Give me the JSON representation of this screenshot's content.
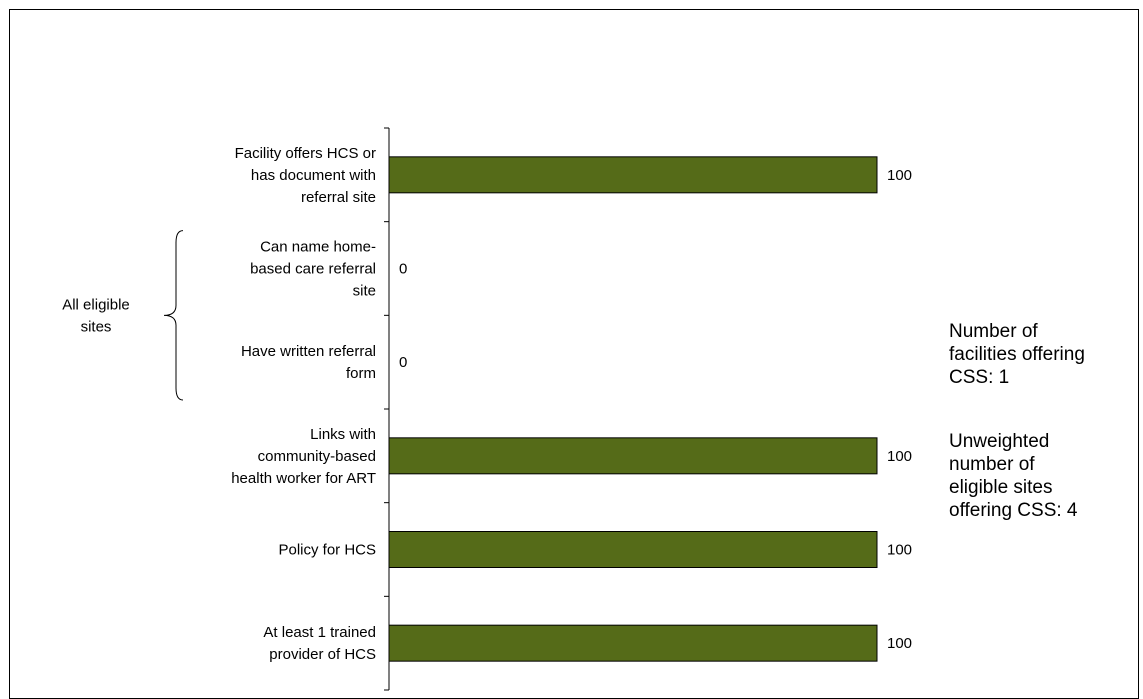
{
  "chart_data": {
    "type": "bar",
    "orientation": "horizontal",
    "categories": [
      [
        "Facility offers HCS or",
        "has document with",
        "referral site"
      ],
      [
        "Can name home-",
        "based care referral",
        "site"
      ],
      [
        "Have written referral",
        "form"
      ],
      [
        "Links with",
        "community-based",
        "health worker for ART"
      ],
      [
        "Policy for HCS"
      ],
      [
        "At least 1 trained",
        "provider of HCS"
      ]
    ],
    "values": [
      100,
      0,
      0,
      100,
      100,
      100
    ],
    "data_labels": [
      "100",
      "0",
      "0",
      "100",
      "100",
      "100"
    ],
    "xlim": [
      0,
      100
    ],
    "bar_color": "#556b18",
    "group_bracket": {
      "label": [
        "All eligible",
        "sites"
      ],
      "spans_categories": [
        1,
        2
      ]
    },
    "annotations": [
      [
        "Number of",
        "facilities offering",
        "CSS: 1"
      ],
      [
        "Unweighted",
        "number of",
        "eligible sites",
        "offering CSS: 4"
      ]
    ]
  }
}
